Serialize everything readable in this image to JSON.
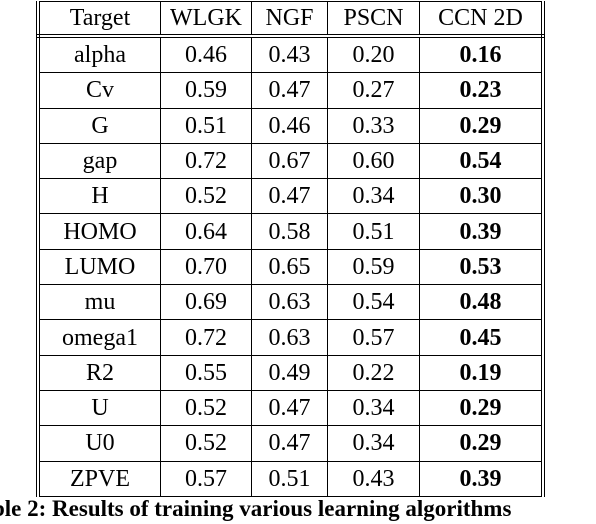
{
  "table": {
    "columns": [
      "Target",
      "WLGK",
      "NGF",
      "PSCN",
      "CCN 2D"
    ],
    "rows": [
      {
        "target": "alpha",
        "wlgk": "0.46",
        "ngf": "0.43",
        "pscn": "0.20",
        "ccn2d": "0.16"
      },
      {
        "target": "Cv",
        "wlgk": "0.59",
        "ngf": "0.47",
        "pscn": "0.27",
        "ccn2d": "0.23"
      },
      {
        "target": "G",
        "wlgk": "0.51",
        "ngf": "0.46",
        "pscn": "0.33",
        "ccn2d": "0.29"
      },
      {
        "target": "gap",
        "wlgk": "0.72",
        "ngf": "0.67",
        "pscn": "0.60",
        "ccn2d": "0.54"
      },
      {
        "target": "H",
        "wlgk": "0.52",
        "ngf": "0.47",
        "pscn": "0.34",
        "ccn2d": "0.30"
      },
      {
        "target": "HOMO",
        "wlgk": "0.64",
        "ngf": "0.58",
        "pscn": "0.51",
        "ccn2d": "0.39"
      },
      {
        "target": "LUMO",
        "wlgk": "0.70",
        "ngf": "0.65",
        "pscn": "0.59",
        "ccn2d": "0.53"
      },
      {
        "target": "mu",
        "wlgk": "0.69",
        "ngf": "0.63",
        "pscn": "0.54",
        "ccn2d": "0.48"
      },
      {
        "target": "omega1",
        "wlgk": "0.72",
        "ngf": "0.63",
        "pscn": "0.57",
        "ccn2d": "0.45"
      },
      {
        "target": "R2",
        "wlgk": "0.55",
        "ngf": "0.49",
        "pscn": "0.22",
        "ccn2d": "0.19"
      },
      {
        "target": "U",
        "wlgk": "0.52",
        "ngf": "0.47",
        "pscn": "0.34",
        "ccn2d": "0.29"
      },
      {
        "target": "U0",
        "wlgk": "0.52",
        "ngf": "0.47",
        "pscn": "0.34",
        "ccn2d": "0.29"
      },
      {
        "target": "ZPVE",
        "wlgk": "0.57",
        "ngf": "0.51",
        "pscn": "0.43",
        "ccn2d": "0.39"
      }
    ],
    "bold_column": "ccn2d"
  },
  "caption": {
    "text": "ble 2:  Results of training various learning algorithms"
  }
}
